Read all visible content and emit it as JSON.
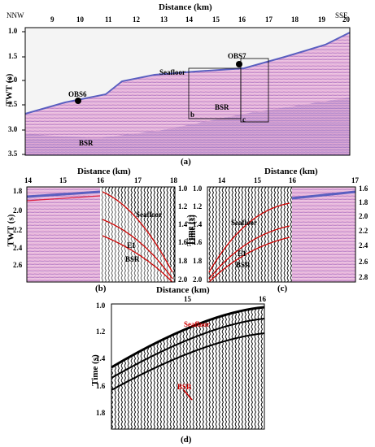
{
  "panel_a": {
    "x_title": "Distance (km)",
    "y_title": "TWT (s)",
    "left_dir": "NNW",
    "right_dir": "SSE",
    "x_ticks": [
      "9",
      "10",
      "11",
      "12",
      "13",
      "14",
      "15",
      "16",
      "17",
      "18",
      "19",
      "20"
    ],
    "y_ticks": [
      "1.0",
      "1.5",
      "2.0",
      "2.5",
      "3.0",
      "3.5"
    ],
    "labels": {
      "seafloor": "Seafloor",
      "obs6": "OBS6",
      "obs7": "OBS7",
      "bsr_main": "BSR",
      "bsr_box": "BSR",
      "box_b": "b",
      "box_c": "c"
    },
    "tag": "(a)"
  },
  "panel_b": {
    "x_title": "Distance (km)",
    "y_title_left": "TWT (s)",
    "y_title_right": "Time (s)",
    "x_ticks": [
      "14",
      "15",
      "16",
      "17",
      "18"
    ],
    "y_ticks_left": [
      "1.8",
      "2.0",
      "2.2",
      "2.4",
      "2.6"
    ],
    "y_ticks_right": [
      "1.0",
      "1.2",
      "1.4",
      "1.6",
      "1.8",
      "2.0"
    ],
    "labels": {
      "seafloor": "Seafloor",
      "e1": "E1",
      "bsr": "BSR"
    },
    "tag": "(b)"
  },
  "panel_c": {
    "x_title": "Distance (km)",
    "y_title_left": "Time (s)",
    "x_ticks": [
      "14",
      "15",
      "16",
      "17"
    ],
    "y_ticks_left": [
      "1.0",
      "1.2",
      "1.4",
      "1.6",
      "1.8",
      "2.0"
    ],
    "y_ticks_right": [
      "1.6",
      "1.8",
      "2.0",
      "2.2",
      "2.4",
      "2.6",
      "2.8"
    ],
    "labels": {
      "seafloor": "Seafloor",
      "e1": "E1",
      "bsr": "BSR"
    },
    "tag": "(c)"
  },
  "panel_d": {
    "x_title": "Distance (km)",
    "y_title": "Time (s)",
    "x_ticks": [
      "15",
      "16"
    ],
    "y_ticks": [
      "1.0",
      "1.2",
      "1.4",
      "1.6",
      "1.8"
    ],
    "labels": {
      "seafloor": "Seafloor",
      "bsr": "BSR"
    },
    "tag": "(d)"
  },
  "colors": {
    "seismic_pink": "#d98fc4",
    "seismic_blue": "#6a6fc6",
    "highlight_red": "#d00000"
  }
}
